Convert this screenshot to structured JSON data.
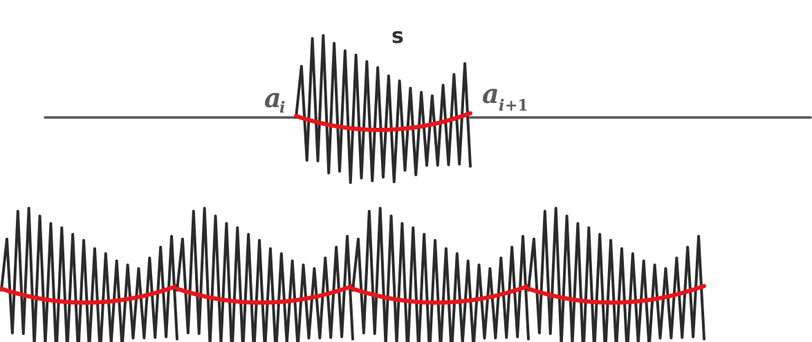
{
  "labels": {
    "segment": "s",
    "left_boundary": {
      "base": "a",
      "subscript": "i"
    },
    "right_boundary": {
      "base": "a",
      "subscript_var": "i",
      "subscript_op": "+1"
    }
  },
  "colors": {
    "baseline": "#555555",
    "oscillation": "#2b2b2b",
    "trend": "#e8161b"
  },
  "description_counts": {
    "repeated_copies_in_bottom_row": 4
  }
}
